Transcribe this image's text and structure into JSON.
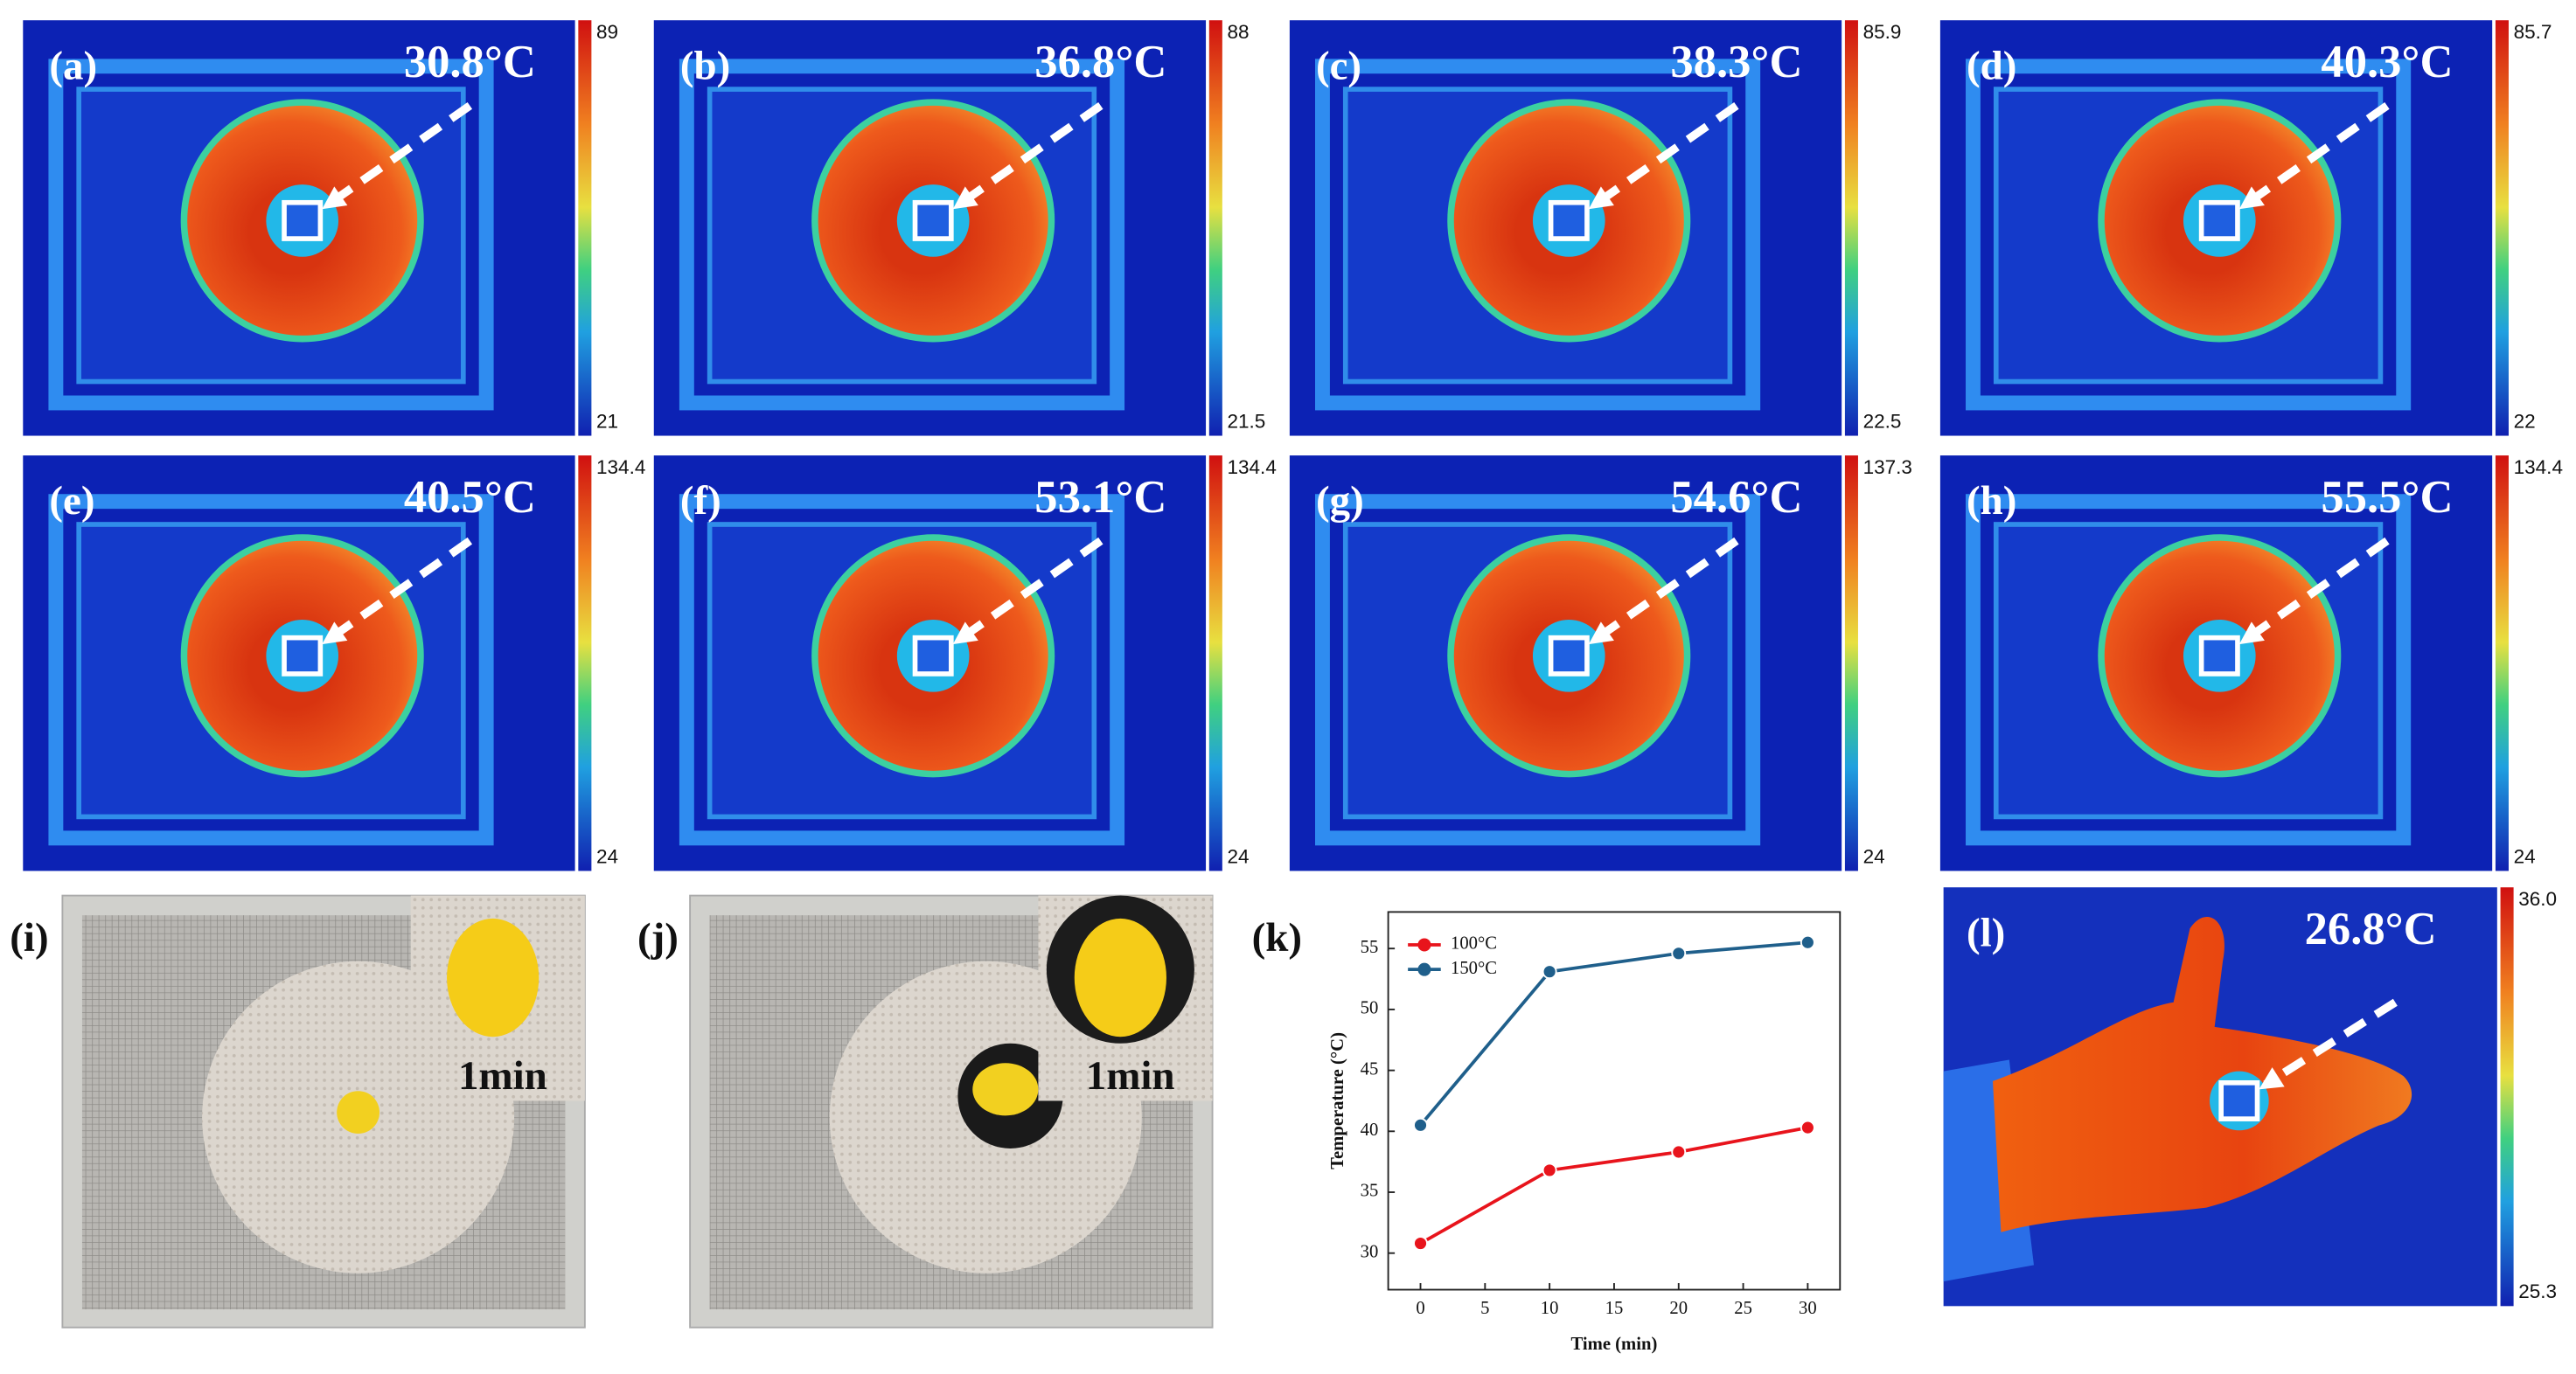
{
  "panels": [
    {
      "label": "(a)",
      "temperature": "30.8°C",
      "scale_max": "89",
      "scale_min": "21"
    },
    {
      "label": "(b)",
      "temperature": "36.8°C",
      "scale_max": "88",
      "scale_min": "21.5"
    },
    {
      "label": "(c)",
      "temperature": "38.3°C",
      "scale_max": "85.9",
      "scale_min": "22.5"
    },
    {
      "label": "(d)",
      "temperature": "40.3°C",
      "scale_max": "85.7",
      "scale_min": "22"
    },
    {
      "label": "(e)",
      "temperature": "40.5°C",
      "scale_max": "134.4",
      "scale_min": "24"
    },
    {
      "label": "(f)",
      "temperature": "53.1°C",
      "scale_max": "134.4",
      "scale_min": "24"
    },
    {
      "label": "(g)",
      "temperature": "54.6°C",
      "scale_max": "137.3",
      "scale_min": "24"
    },
    {
      "label": "(h)",
      "temperature": "55.5°C",
      "scale_max": "134.4",
      "scale_min": "24"
    }
  ],
  "photo_panels": [
    {
      "label": "(i)",
      "inset_text": "1min"
    },
    {
      "label": "(j)",
      "inset_text": "1min"
    }
  ],
  "hand_panel": {
    "label": "(l)",
    "temperature": "26.8°C",
    "scale_max": "36.0",
    "scale_min": "25.3"
  },
  "chart_data": {
    "type": "line",
    "label": "(k)",
    "x_label": "Time (min)",
    "y_label": "Temperature (°C)",
    "x": [
      0,
      10,
      20,
      30
    ],
    "series": [
      {
        "name": "100°C",
        "color": "#e8141c",
        "values": [
          30.8,
          36.8,
          38.3,
          40.3
        ]
      },
      {
        "name": "150°C",
        "color": "#1f5f8b",
        "values": [
          40.5,
          53.1,
          54.6,
          55.5
        ]
      }
    ],
    "xlim": [
      -2.5,
      32.5
    ],
    "ylim": [
      27,
      58
    ],
    "xticks": [
      0,
      5,
      10,
      15,
      20,
      25,
      30
    ],
    "yticks": [
      30,
      35,
      40,
      45,
      50,
      55
    ],
    "legend": "upper left"
  }
}
